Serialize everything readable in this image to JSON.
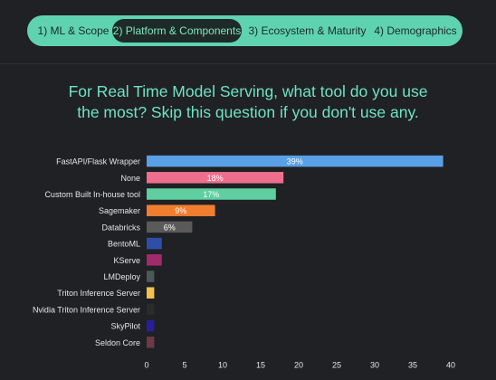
{
  "tabs": [
    {
      "label": "1) ML & Scope",
      "active": false
    },
    {
      "label": "2) Platform & Components",
      "active": true
    },
    {
      "label": "3) Ecosystem & Maturity",
      "active": false
    },
    {
      "label": "4) Demographics",
      "active": false
    }
  ],
  "question": {
    "line1": "For Real Time Model Serving, what tool do you use",
    "line2": "the most? Skip this question if you don't use any."
  },
  "chart_data": {
    "type": "bar",
    "orientation": "horizontal",
    "title": "",
    "xlabel": "",
    "ylabel": "",
    "xlim": [
      0,
      40
    ],
    "xticks": [
      0,
      5,
      10,
      15,
      20,
      25,
      30,
      35,
      40
    ],
    "grid": false,
    "categories": [
      "FastAPI/Flask Wrapper",
      "None",
      "Custom Built In-house tool",
      "Sagemaker",
      "Databricks",
      "BentoML",
      "KServe",
      "LMDeploy",
      "Triton Inference Server",
      "Nvidia Triton Inference Server",
      "SkyPilot",
      "Seldon Core"
    ],
    "values": [
      39,
      18,
      17,
      9,
      6,
      2,
      2,
      1,
      1,
      1,
      1,
      1
    ],
    "data_labels": [
      "39%",
      "18%",
      "17%",
      "9%",
      "6%",
      "",
      "",
      "",
      "",
      "",
      "",
      ""
    ],
    "colors": [
      "#5aa0e6",
      "#ee6f8d",
      "#5fcfa0",
      "#f07e2e",
      "#5a5a5a",
      "#2e4fa8",
      "#a02a6a",
      "#4b5a56",
      "#f2c14e",
      "#2b2b2b",
      "#2a1e9a",
      "#6b3a44"
    ]
  }
}
